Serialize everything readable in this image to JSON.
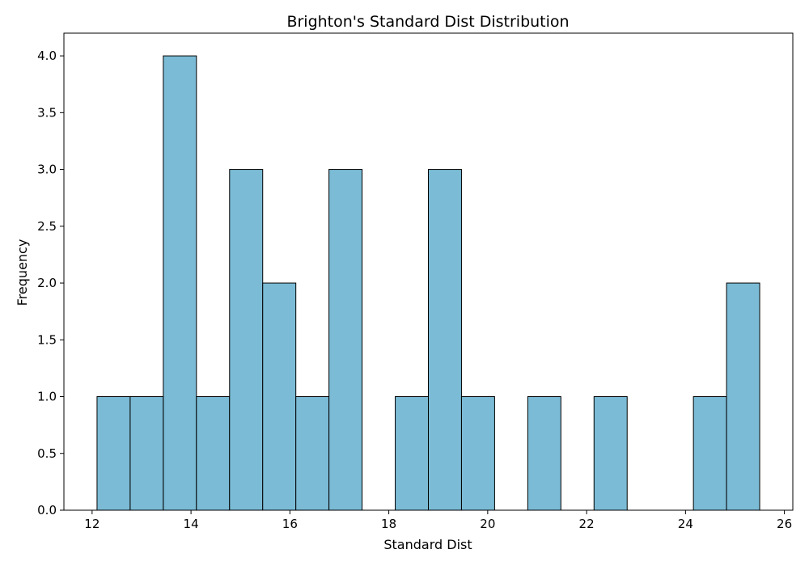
{
  "chart_data": {
    "type": "bar",
    "title": "Brighton's Standard Dist Distribution",
    "xlabel": "Standard Dist",
    "ylabel": "Frequency",
    "xlim": [
      11.43,
      26.17
    ],
    "ylim": [
      0,
      4.2
    ],
    "x_ticks": [
      12,
      14,
      16,
      18,
      20,
      22,
      24,
      26
    ],
    "y_ticks": [
      0.0,
      0.5,
      1.0,
      1.5,
      2.0,
      2.5,
      3.0,
      3.5,
      4.0
    ],
    "grid": false,
    "bins": [
      {
        "start": 12.1,
        "end": 12.77,
        "count": 1
      },
      {
        "start": 12.77,
        "end": 13.44,
        "count": 1
      },
      {
        "start": 13.44,
        "end": 14.11,
        "count": 4
      },
      {
        "start": 14.11,
        "end": 14.78,
        "count": 1
      },
      {
        "start": 14.78,
        "end": 15.45,
        "count": 3
      },
      {
        "start": 15.45,
        "end": 16.12,
        "count": 2
      },
      {
        "start": 16.12,
        "end": 16.79,
        "count": 1
      },
      {
        "start": 16.79,
        "end": 17.46,
        "count": 3
      },
      {
        "start": 17.46,
        "end": 18.13,
        "count": 0
      },
      {
        "start": 18.13,
        "end": 18.8,
        "count": 1
      },
      {
        "start": 18.8,
        "end": 19.47,
        "count": 3
      },
      {
        "start": 19.47,
        "end": 20.14,
        "count": 1
      },
      {
        "start": 20.14,
        "end": 20.81,
        "count": 0
      },
      {
        "start": 20.81,
        "end": 21.48,
        "count": 1
      },
      {
        "start": 21.48,
        "end": 22.15,
        "count": 0
      },
      {
        "start": 22.15,
        "end": 22.82,
        "count": 1
      },
      {
        "start": 22.82,
        "end": 23.49,
        "count": 0
      },
      {
        "start": 23.49,
        "end": 24.16,
        "count": 0
      },
      {
        "start": 24.16,
        "end": 24.83,
        "count": 1
      },
      {
        "start": 24.83,
        "end": 25.5,
        "count": 2
      }
    ],
    "bar_color": "#7bbbd5",
    "edge_color": "#000000"
  }
}
